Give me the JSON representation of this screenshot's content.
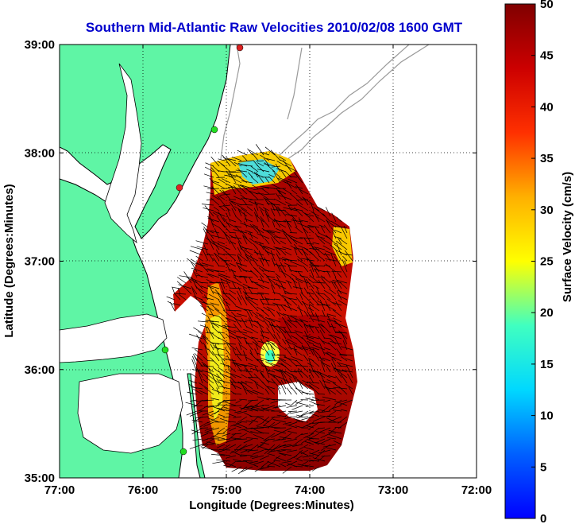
{
  "title": "Southern Mid-Atlantic Raw Velocities 2010/02/08 1600 GMT",
  "colors": {
    "title": "#0000cc",
    "land": "#5ff5a5",
    "coast": "#000000",
    "bathymetry": "#9a9a9a",
    "stations_green": "#22dd22",
    "stations_red": "#dd2222"
  },
  "chart_data": {
    "type": "heatmap",
    "title": "Southern Mid-Atlantic Raw Velocities 2010/02/08 1600 GMT",
    "xlabel": "Longitude (Degrees:Minutes)",
    "ylabel": "Latitude (Degrees:Minutes)",
    "xlim": [
      -77,
      -72
    ],
    "ylim": [
      35,
      39
    ],
    "grid": true,
    "x_ticks": [
      "77:00",
      "76:00",
      "75:00",
      "74:00",
      "73:00",
      "72:00"
    ],
    "y_ticks": [
      "39:00",
      "38:00",
      "37:00",
      "36:00",
      "35:00"
    ],
    "colorbar": {
      "label": "Surface Velocity (cm/s)",
      "min": 0,
      "max": 50,
      "ticks": [
        "50",
        "45",
        "40",
        "35",
        "30",
        "25",
        "20",
        "15",
        "10",
        "5",
        "0"
      ],
      "colormap": "jet"
    }
  }
}
